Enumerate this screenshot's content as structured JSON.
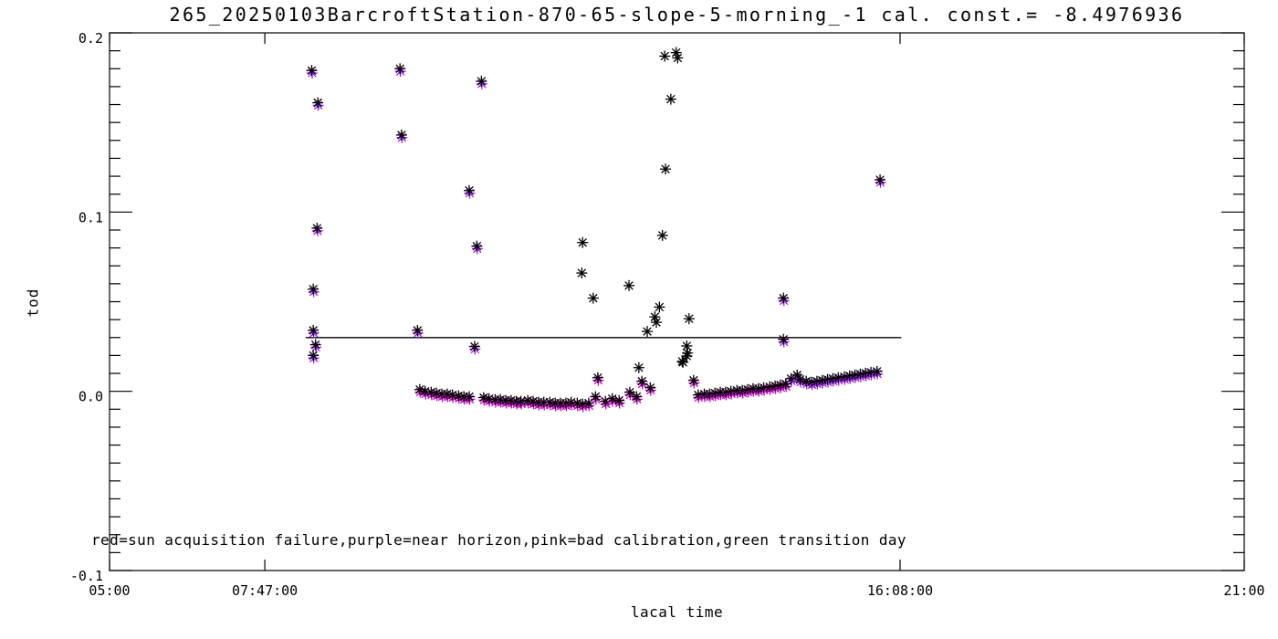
{
  "title": "265_20250103BarcroftStation-870-65-slope-5-morning_-1 cal. const.= -8.4976936",
  "annotation": "red=sun acquisition failure,purple=near horizon,pink=bad calibration,green transition day",
  "axes": {
    "x_label": "lacal time",
    "y_label": "tod"
  },
  "chart_data": {
    "type": "scatter",
    "title": "265_20250103BarcroftStation-870-65-slope-5-morning_-1 cal. const.= -8.4976936",
    "xlabel": "lacal time",
    "ylabel": "tod",
    "ylim": [
      -0.1,
      0.2
    ],
    "grid": false,
    "marker": "asterisk",
    "y_ticks": [
      {
        "label": "0.2",
        "value": 0.2
      },
      {
        "label": "0.1",
        "value": 0.1
      },
      {
        "label": "0.0",
        "value": 0.0
      },
      {
        "label": "-0.1",
        "value": -0.1
      }
    ],
    "y_minor_step": 0.01,
    "x_ticks": [
      {
        "label": "05:00",
        "hours": 5.0
      },
      {
        "label": "07:47:00",
        "hours": 7.7833
      },
      {
        "label": "16:08:00",
        "hours": 16.1333
      },
      {
        "label": "21:00",
        "hours": 21.0
      }
    ],
    "reference_line": {
      "tod": 0.03,
      "start_hours": 8.32,
      "end_hours": 16.15,
      "color": "#000000"
    },
    "status_colors": {
      "red": "sun acquisition failure",
      "purple": "near horizon",
      "pink": "bad calibration",
      "green": "transition day"
    },
    "series": [
      {
        "name": "normal",
        "color": "#000000",
        "overplot": false,
        "points": [
          [
            13.04,
            0.187
          ],
          [
            13.19,
            0.189
          ],
          [
            13.21,
            0.186
          ],
          [
            13.12,
            0.163
          ],
          [
            13.05,
            0.124
          ],
          [
            13.01,
            0.087
          ],
          [
            11.96,
            0.083
          ],
          [
            11.95,
            0.066
          ],
          [
            12.57,
            0.059
          ],
          [
            12.1,
            0.052
          ],
          [
            12.97,
            0.047
          ],
          [
            12.91,
            0.0415
          ],
          [
            12.93,
            0.0385
          ],
          [
            13.36,
            0.0405
          ],
          [
            12.81,
            0.0334
          ],
          [
            13.33,
            0.0253
          ],
          [
            13.34,
            0.0213
          ],
          [
            13.28,
            0.0162
          ],
          [
            12.7,
            0.0132
          ],
          [
            13.27,
            0.0167
          ],
          [
            13.33,
            0.0197
          ]
        ]
      },
      {
        "name": "near_horizon",
        "color": "#A020F0",
        "overplot": true,
        "points": [
          [
            8.4,
            0.179
          ],
          [
            9.56,
            0.18
          ],
          [
            10.63,
            0.173
          ],
          [
            8.48,
            0.161
          ],
          [
            9.58,
            0.143
          ],
          [
            10.47,
            0.112
          ],
          [
            8.47,
            0.091
          ],
          [
            10.57,
            0.081
          ],
          [
            8.42,
            0.057
          ],
          [
            8.42,
            0.034
          ],
          [
            9.79,
            0.034
          ],
          [
            8.45,
            0.026
          ],
          [
            10.54,
            0.025
          ],
          [
            8.42,
            0.02
          ],
          [
            14.6,
            0.052
          ],
          [
            14.6,
            0.029
          ],
          [
            15.87,
            0.118
          ],
          [
            14.7,
            0.0071
          ],
          [
            14.78,
            0.0091
          ],
          [
            14.82,
            0.0066
          ],
          [
            14.9,
            0.0056
          ],
          [
            14.97,
            0.0051
          ],
          [
            15.04,
            0.0056
          ],
          [
            15.11,
            0.0061
          ],
          [
            15.18,
            0.0066
          ],
          [
            15.25,
            0.0071
          ],
          [
            15.32,
            0.0076
          ],
          [
            15.4,
            0.0081
          ],
          [
            15.47,
            0.0086
          ],
          [
            15.54,
            0.0091
          ],
          [
            15.61,
            0.0096
          ],
          [
            15.68,
            0.0101
          ],
          [
            15.75,
            0.0106
          ],
          [
            15.83,
            0.0111
          ]
        ]
      },
      {
        "name": "bad_calibration",
        "color": "#CC00CC",
        "overplot": true,
        "points": [
          [
            9.82,
            0.001
          ],
          [
            9.89,
            0.0
          ],
          [
            9.97,
            -0.0005
          ],
          [
            10.04,
            -0.001
          ],
          [
            10.11,
            -0.0015
          ],
          [
            10.18,
            -0.0015
          ],
          [
            10.25,
            -0.002
          ],
          [
            10.33,
            -0.0025
          ],
          [
            10.4,
            -0.003
          ],
          [
            10.47,
            -0.003
          ],
          [
            10.66,
            -0.0035
          ],
          [
            10.73,
            -0.0041
          ],
          [
            10.81,
            -0.0046
          ],
          [
            10.88,
            -0.0046
          ],
          [
            10.95,
            -0.0051
          ],
          [
            11.02,
            -0.0051
          ],
          [
            11.09,
            -0.0056
          ],
          [
            11.15,
            -0.0056
          ],
          [
            11.24,
            -0.0051
          ],
          [
            11.31,
            -0.0056
          ],
          [
            11.38,
            -0.0061
          ],
          [
            11.45,
            -0.0061
          ],
          [
            11.53,
            -0.0061
          ],
          [
            11.6,
            -0.0066
          ],
          [
            11.67,
            -0.0066
          ],
          [
            11.74,
            -0.0066
          ],
          [
            11.81,
            -0.0061
          ],
          [
            11.89,
            -0.0066
          ],
          [
            11.96,
            -0.0071
          ],
          [
            12.04,
            -0.0066
          ],
          [
            12.13,
            -0.003
          ],
          [
            12.16,
            0.0076
          ],
          [
            12.26,
            -0.0056
          ],
          [
            12.35,
            -0.0041
          ],
          [
            12.44,
            -0.0051
          ],
          [
            12.58,
            -0.0005
          ],
          [
            12.67,
            -0.003
          ],
          [
            12.74,
            0.0056
          ],
          [
            12.85,
            0.002
          ],
          [
            13.42,
            0.0061
          ],
          [
            13.48,
            -0.002
          ],
          [
            13.56,
            -0.0015
          ],
          [
            13.63,
            -0.0015
          ],
          [
            13.7,
            -0.001
          ],
          [
            13.77,
            -0.0005
          ],
          [
            13.84,
            -0.0005
          ],
          [
            13.91,
            0.0
          ],
          [
            13.99,
            0.0005
          ],
          [
            14.06,
            0.0005
          ],
          [
            14.13,
            0.001
          ],
          [
            14.2,
            0.0015
          ],
          [
            14.27,
            0.0015
          ],
          [
            14.34,
            0.002
          ],
          [
            14.42,
            0.0025
          ],
          [
            14.49,
            0.003
          ],
          [
            14.56,
            0.0035
          ],
          [
            14.63,
            0.0041
          ]
        ]
      }
    ]
  }
}
